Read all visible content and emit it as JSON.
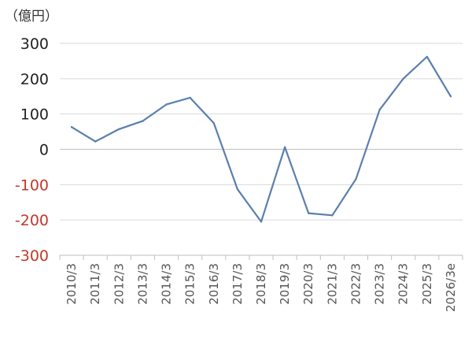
{
  "chart_data": {
    "type": "line",
    "unit_label": "（億円）",
    "categories": [
      "2010/3",
      "2011/3",
      "2012/3",
      "2013/3",
      "2014/3",
      "2015/3",
      "2016/3",
      "2017/3",
      "2018/3",
      "2019/3",
      "2020/3",
      "2021/3",
      "2022/3",
      "2023/3",
      "2024/3",
      "2025/3",
      "2026/3e"
    ],
    "series": [
      {
        "values": [
          63,
          22,
          57,
          80,
          127,
          146,
          74,
          -113,
          -205,
          6,
          -181,
          -187,
          -84,
          112,
          200,
          262,
          150
        ]
      }
    ],
    "yticks": [
      300,
      200,
      100,
      0,
      -100,
      -200,
      -300
    ],
    "ylim": [
      -300,
      300
    ],
    "grid": true,
    "legend": "none"
  },
  "colors": {
    "line": "#5a7fae",
    "positive_tick": "#222222",
    "negative_tick": "#c0392b"
  }
}
